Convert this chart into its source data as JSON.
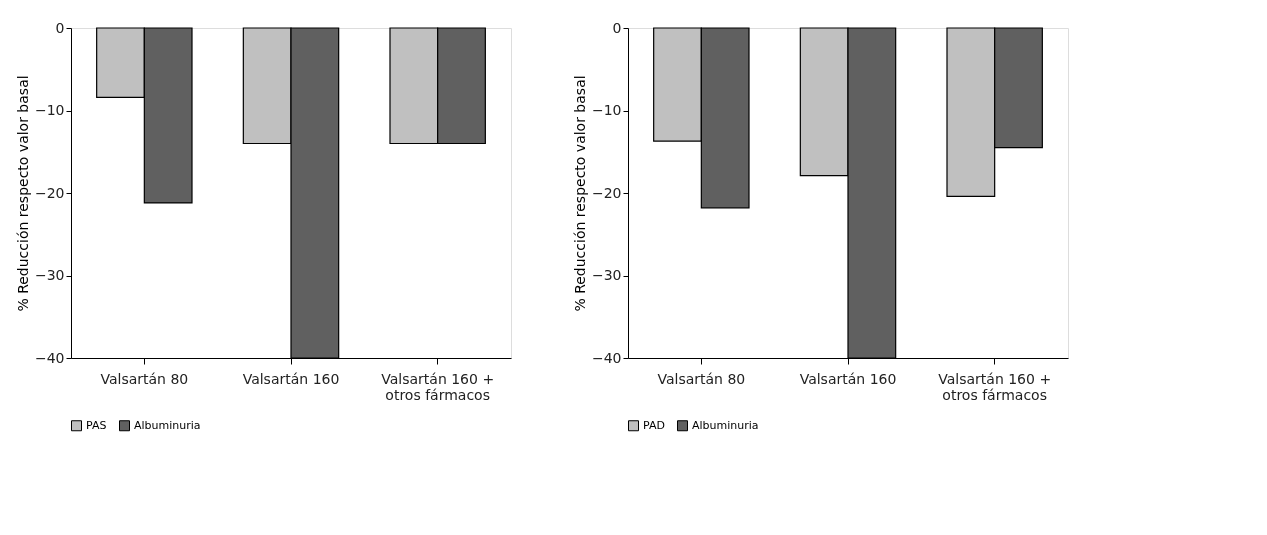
{
  "chart_data": [
    {
      "type": "bar",
      "ylabel": "% Reducción respecto valor basal",
      "categories": [
        "Valsartán 80",
        "Valsartán 160",
        "Valsartán 160 +\notros fármacos"
      ],
      "ylim": [
        -40,
        0
      ],
      "yticks": [
        -40,
        -30,
        -20,
        -10,
        0
      ],
      "legend": "bottom",
      "grid": false,
      "series": [
        {
          "name": "PAS",
          "color": "#c0c0c0",
          "values": [
            -8.4,
            -14.0,
            -14.0
          ]
        },
        {
          "name": "Albuminuria",
          "color": "#606060",
          "values": [
            -21.2,
            -40,
            -14.0
          ]
        }
      ]
    },
    {
      "type": "bar",
      "ylabel": "% Reducción respecto valor basal",
      "categories": [
        "Valsartán 80",
        "Valsartán 160",
        "Valsartán 160 +\notros fármacos"
      ],
      "ylim": [
        -40,
        0
      ],
      "yticks": [
        -40,
        -30,
        -20,
        -10,
        0
      ],
      "legend": "bottom",
      "grid": false,
      "series": [
        {
          "name": "PAD",
          "color": "#c0c0c0",
          "values": [
            -13.7,
            -17.9,
            -20.4
          ]
        },
        {
          "name": "Albuminuria",
          "color": "#606060",
          "values": [
            -21.8,
            -40,
            -14.5
          ]
        }
      ]
    }
  ]
}
